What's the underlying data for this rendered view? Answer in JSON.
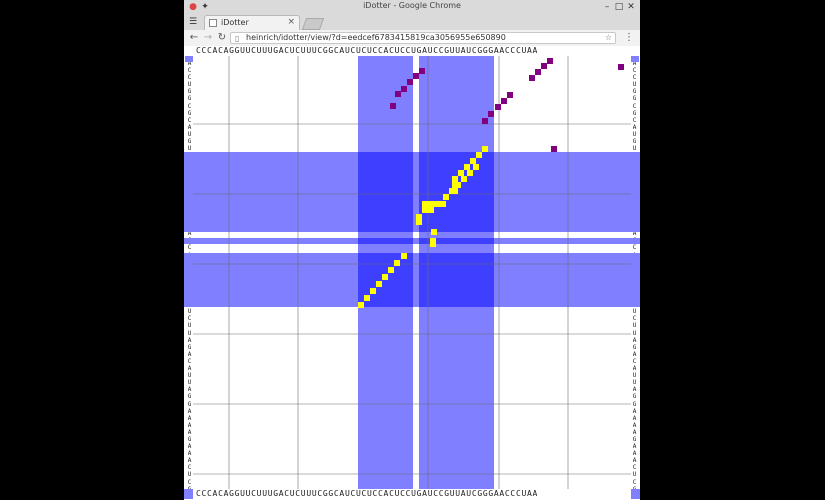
{
  "window": {
    "title": "iDotter - Google Chrome",
    "controls": {
      "minimize": "–",
      "maximize": "□",
      "close": "✕"
    }
  },
  "tab": {
    "label": "iDotter",
    "close": "×"
  },
  "nav": {
    "back": "←",
    "forward": "→",
    "reload": "↻",
    "url": "heinrich/idotter/view/?d=eedcef6783415819ca3056955e650890",
    "bookmark": "☆",
    "menu": "⋮"
  },
  "dotplot": {
    "top_sequence": "CCCACAGGUUCUUUGACUCUUUCGGCAUCUCUCCACUCCUGAUCCGUUAUCGGGAACCCUAA",
    "bottom_sequence": "CCCACAGGUUCUUUGACUCUUUCGGCAUCUCUCCACUCCUGAUCCGUUAUCGGGAACCCUAA",
    "left_sequence": "ACCUGGCGCAUGUCGUAUCGAGUAACCACAGAGCUUCUUAGACAUUAGGAAAAGAAACUCGGCA",
    "right_sequence": "ACCUGGCGCAUGUCGUAUCGAGUAACCACAGAGCUUCUUAGACAUUAGGAAAAGAAACUCGGCA",
    "colors": {
      "highlight": "#7f7fff",
      "highlight_overlap": "#3f3fff",
      "dot_match": "#ffff00",
      "dot_other": "#800080",
      "grid": "#6e6e6e"
    }
  }
}
